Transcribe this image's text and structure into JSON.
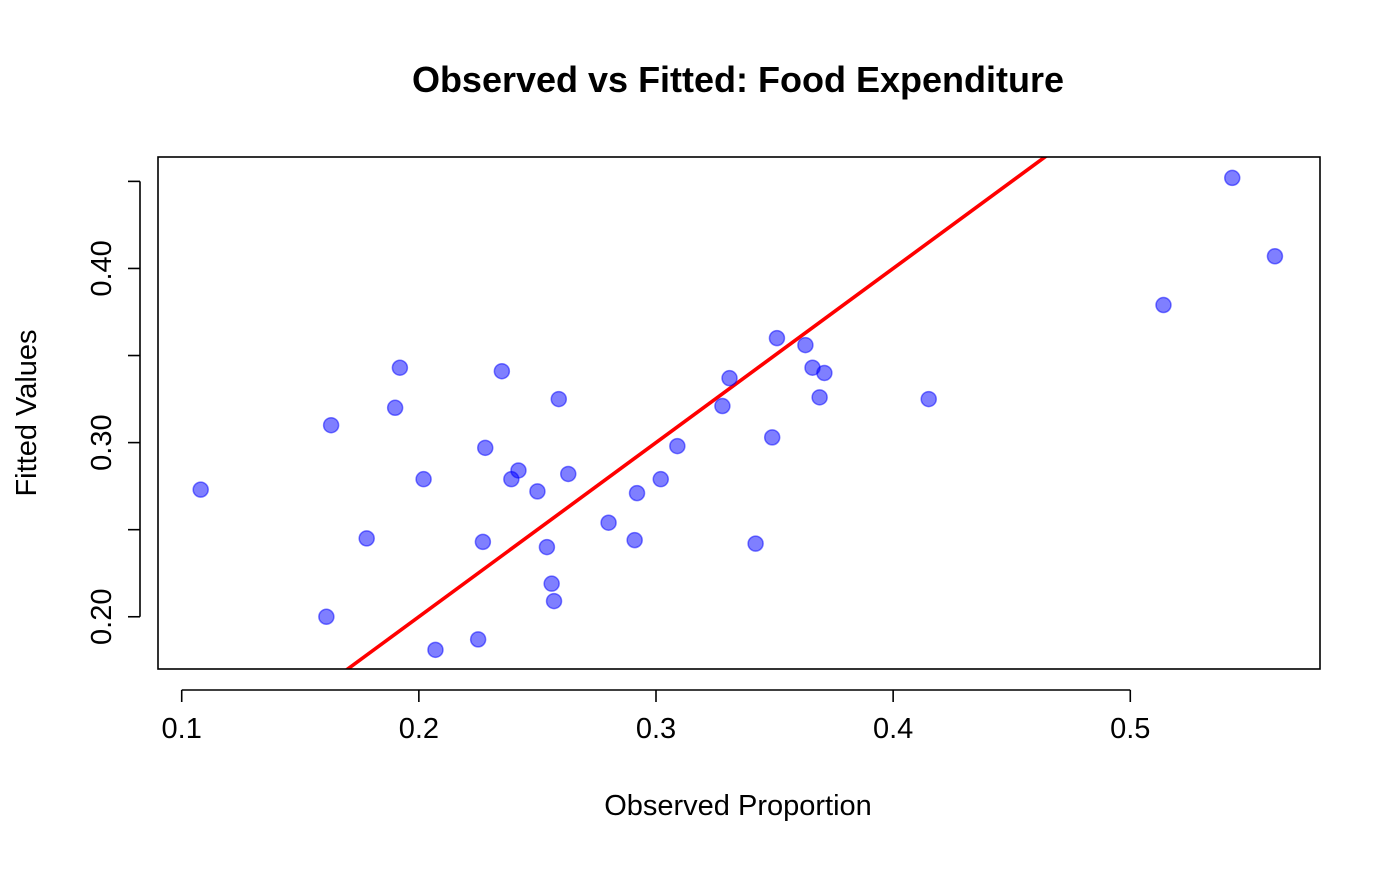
{
  "chart_data": {
    "type": "scatter",
    "title": "Observed vs Fitted: Food Expenditure",
    "xlabel": "Observed Proportion",
    "ylabel": "Fitted Values",
    "xlim": [
      0.09,
      0.58
    ],
    "ylim": [
      0.17,
      0.464
    ],
    "x_ticks": [
      {
        "value": 0.1,
        "label": "0.1"
      },
      {
        "value": 0.2,
        "label": "0.2"
      },
      {
        "value": 0.3,
        "label": "0.3"
      },
      {
        "value": 0.4,
        "label": "0.4"
      },
      {
        "value": 0.5,
        "label": "0.5"
      }
    ],
    "y_ticks": [
      {
        "value": 0.2,
        "label": "0.20"
      },
      {
        "value": 0.25,
        "label": ""
      },
      {
        "value": 0.3,
        "label": "0.30"
      },
      {
        "value": 0.35,
        "label": ""
      },
      {
        "value": 0.4,
        "label": "0.40"
      },
      {
        "value": 0.45,
        "label": ""
      }
    ],
    "grid": false,
    "point_color": "#0000FF",
    "point_opacity": 0.5,
    "line_color": "#FF0000",
    "reference_line": {
      "type": "identity",
      "intercept": 0,
      "slope": 1
    },
    "points": [
      {
        "x": 0.108,
        "y": 0.273
      },
      {
        "x": 0.161,
        "y": 0.2
      },
      {
        "x": 0.163,
        "y": 0.31
      },
      {
        "x": 0.178,
        "y": 0.245
      },
      {
        "x": 0.19,
        "y": 0.32
      },
      {
        "x": 0.192,
        "y": 0.343
      },
      {
        "x": 0.202,
        "y": 0.279
      },
      {
        "x": 0.207,
        "y": 0.181
      },
      {
        "x": 0.225,
        "y": 0.187
      },
      {
        "x": 0.227,
        "y": 0.243
      },
      {
        "x": 0.228,
        "y": 0.297
      },
      {
        "x": 0.235,
        "y": 0.341
      },
      {
        "x": 0.239,
        "y": 0.279
      },
      {
        "x": 0.242,
        "y": 0.284
      },
      {
        "x": 0.25,
        "y": 0.272
      },
      {
        "x": 0.254,
        "y": 0.24
      },
      {
        "x": 0.256,
        "y": 0.219
      },
      {
        "x": 0.257,
        "y": 0.209
      },
      {
        "x": 0.259,
        "y": 0.325
      },
      {
        "x": 0.263,
        "y": 0.282
      },
      {
        "x": 0.28,
        "y": 0.254
      },
      {
        "x": 0.291,
        "y": 0.244
      },
      {
        "x": 0.292,
        "y": 0.271
      },
      {
        "x": 0.302,
        "y": 0.279
      },
      {
        "x": 0.309,
        "y": 0.298
      },
      {
        "x": 0.328,
        "y": 0.321
      },
      {
        "x": 0.331,
        "y": 0.337
      },
      {
        "x": 0.342,
        "y": 0.242
      },
      {
        "x": 0.349,
        "y": 0.303
      },
      {
        "x": 0.351,
        "y": 0.36
      },
      {
        "x": 0.363,
        "y": 0.356
      },
      {
        "x": 0.366,
        "y": 0.343
      },
      {
        "x": 0.369,
        "y": 0.326
      },
      {
        "x": 0.371,
        "y": 0.34
      },
      {
        "x": 0.415,
        "y": 0.325
      },
      {
        "x": 0.514,
        "y": 0.379
      },
      {
        "x": 0.543,
        "y": 0.452
      },
      {
        "x": 0.561,
        "y": 0.407
      }
    ]
  }
}
